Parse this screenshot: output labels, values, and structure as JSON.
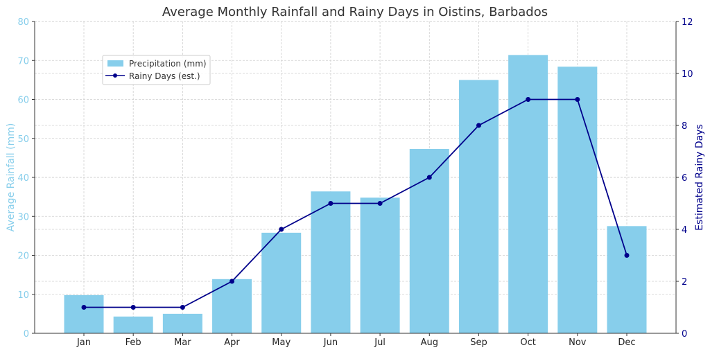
{
  "chart_data": {
    "type": "bar+line",
    "title": "Average Monthly Rainfall and Rainy Days in Oistins, Barbados",
    "categories": [
      "Jan",
      "Feb",
      "Mar",
      "Apr",
      "May",
      "Jun",
      "Jul",
      "Aug",
      "Sep",
      "Oct",
      "Nov",
      "Dec"
    ],
    "series": [
      {
        "name": "Precipitation (mm)",
        "type": "bar",
        "axis": "left",
        "color": "#87ceeb",
        "values": [
          9.8,
          4.3,
          5.0,
          13.9,
          25.8,
          36.4,
          34.8,
          47.3,
          65.0,
          71.4,
          68.4,
          27.5
        ]
      },
      {
        "name": "Rainy Days (est.)",
        "type": "line",
        "axis": "right",
        "color": "#00008b",
        "values": [
          1,
          1,
          1,
          2,
          4,
          5,
          5,
          6,
          8,
          9,
          9,
          3
        ]
      }
    ],
    "ylabel_left": "Average Rainfall (mm)",
    "ylabel_right": "Estimated Rainy Days",
    "ylim_left": [
      0,
      80
    ],
    "ylim_right": [
      0,
      12
    ],
    "yticks_left": [
      "0",
      "10",
      "20",
      "30",
      "40",
      "50",
      "60",
      "70",
      "80"
    ],
    "yticks_right": [
      "0",
      "2",
      "4",
      "6",
      "8",
      "10",
      "12"
    ],
    "left_axis_color": "#87ceeb",
    "right_axis_color": "#00008b",
    "grid": true,
    "legend_position": "upper-left"
  }
}
